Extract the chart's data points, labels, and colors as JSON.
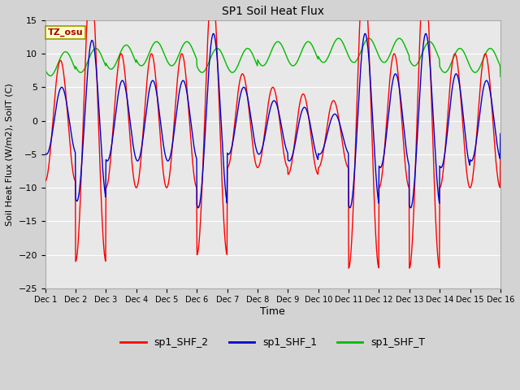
{
  "title": "SP1 Soil Heat Flux",
  "xlabel": "Time",
  "ylabel": "Soil Heat Flux (W/m2), SoilT (C)",
  "ylim": [
    -25,
    15
  ],
  "xlim": [
    0,
    360
  ],
  "fig_bg_color": "#d3d3d3",
  "plot_bg_color": "#e8e8e8",
  "grid_color": "#ffffff",
  "tz_label": "TZ_osu",
  "tz_bg": "#ffffcc",
  "tz_border": "#999900",
  "line_red": "#ff0000",
  "line_blue": "#0000cc",
  "line_green": "#00bb00",
  "tick_labels": [
    "Dec 1",
    "Dec 2",
    "Dec 3",
    "Dec 4",
    "Dec 5",
    "Dec 6",
    "Dec 7",
    "Dec 8",
    "Dec 9",
    "Dec 10",
    "Dec 11",
    "Dec 12",
    "Dec 13",
    "Dec 14",
    "Dec 15",
    "Dec 16"
  ],
  "tick_positions": [
    0,
    24,
    48,
    72,
    96,
    120,
    144,
    168,
    192,
    216,
    240,
    264,
    288,
    312,
    336,
    360
  ],
  "yticks": [
    -25,
    -20,
    -15,
    -10,
    -5,
    0,
    5,
    10,
    15
  ],
  "legend_labels": [
    "sp1_SHF_2",
    "sp1_SHF_1",
    "sp1_SHF_T"
  ]
}
